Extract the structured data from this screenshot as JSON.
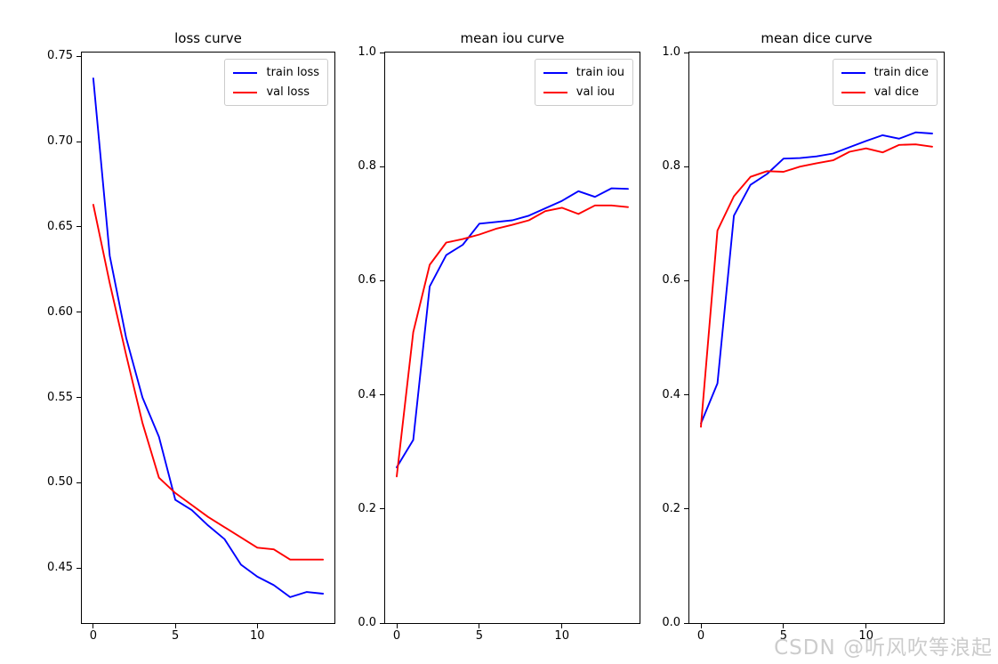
{
  "watermark": {
    "text": "CSDN @听风吹等浪起",
    "color": "#cccccc"
  },
  "colors": {
    "train": "#0000ff",
    "val": "#ff0000",
    "axis": "#000000",
    "legend_border": "#cccccc"
  },
  "chart_data": [
    {
      "type": "line",
      "title": "loss curve",
      "xlabel": "",
      "ylabel": "",
      "grid": false,
      "legend_position": "upper right",
      "x": [
        0,
        1,
        2,
        3,
        4,
        5,
        6,
        7,
        8,
        9,
        10,
        11,
        12,
        13,
        14
      ],
      "xlim": [
        -0.7,
        14.7
      ],
      "ylim": [
        0.4178,
        0.7522
      ],
      "x_ticks": [
        {
          "v": 0,
          "label": "0"
        },
        {
          "v": 5,
          "label": "5"
        },
        {
          "v": 10,
          "label": "10"
        }
      ],
      "y_ticks": [
        {
          "v": 0.45,
          "label": "0.45"
        },
        {
          "v": 0.5,
          "label": "0.50"
        },
        {
          "v": 0.55,
          "label": "0.55"
        },
        {
          "v": 0.6,
          "label": "0.60"
        },
        {
          "v": 0.65,
          "label": "0.65"
        },
        {
          "v": 0.7,
          "label": "0.70"
        },
        {
          "v": 0.75,
          "label": "0.75"
        }
      ],
      "series": [
        {
          "name": "train loss",
          "color": "#0000ff",
          "values": [
            0.737,
            0.633,
            0.585,
            0.55,
            0.527,
            0.49,
            0.484,
            0.475,
            0.467,
            0.452,
            0.445,
            0.44,
            0.433,
            0.436,
            0.435
          ]
        },
        {
          "name": "val loss",
          "color": "#ff0000",
          "values": [
            0.663,
            0.617,
            0.575,
            0.535,
            0.503,
            0.494,
            0.487,
            0.48,
            0.474,
            0.468,
            0.462,
            0.461,
            0.455,
            0.455,
            0.455
          ]
        }
      ]
    },
    {
      "type": "line",
      "title": "mean iou curve",
      "xlabel": "",
      "ylabel": "",
      "grid": false,
      "legend_position": "upper right",
      "x": [
        0,
        1,
        2,
        3,
        4,
        5,
        6,
        7,
        8,
        9,
        10,
        11,
        12,
        13,
        14
      ],
      "xlim": [
        -0.7,
        14.7
      ],
      "ylim": [
        0.0,
        1.0
      ],
      "x_ticks": [
        {
          "v": 0,
          "label": "0"
        },
        {
          "v": 5,
          "label": "5"
        },
        {
          "v": 10,
          "label": "10"
        }
      ],
      "y_ticks": [
        {
          "v": 0.0,
          "label": "0.0"
        },
        {
          "v": 0.2,
          "label": "0.2"
        },
        {
          "v": 0.4,
          "label": "0.4"
        },
        {
          "v": 0.6,
          "label": "0.6"
        },
        {
          "v": 0.8,
          "label": "0.8"
        },
        {
          "v": 1.0,
          "label": "1.0"
        }
      ],
      "series": [
        {
          "name": "train iou",
          "color": "#0000ff",
          "values": [
            0.273,
            0.321,
            0.59,
            0.645,
            0.663,
            0.7,
            0.703,
            0.706,
            0.714,
            0.727,
            0.74,
            0.757,
            0.747,
            0.762,
            0.761
          ]
        },
        {
          "name": "val iou",
          "color": "#ff0000",
          "values": [
            0.257,
            0.51,
            0.628,
            0.667,
            0.673,
            0.681,
            0.691,
            0.698,
            0.706,
            0.722,
            0.728,
            0.717,
            0.732,
            0.732,
            0.729
          ]
        }
      ]
    },
    {
      "type": "line",
      "title": "mean dice curve",
      "xlabel": "",
      "ylabel": "",
      "grid": false,
      "legend_position": "upper right",
      "x": [
        0,
        1,
        2,
        3,
        4,
        5,
        6,
        7,
        8,
        9,
        10,
        11,
        12,
        13,
        14
      ],
      "xlim": [
        -0.7,
        14.7
      ],
      "ylim": [
        0.0,
        1.0
      ],
      "x_ticks": [
        {
          "v": 0,
          "label": "0"
        },
        {
          "v": 5,
          "label": "5"
        },
        {
          "v": 10,
          "label": "10"
        }
      ],
      "y_ticks": [
        {
          "v": 0.0,
          "label": "0.0"
        },
        {
          "v": 0.2,
          "label": "0.2"
        },
        {
          "v": 0.4,
          "label": "0.4"
        },
        {
          "v": 0.6,
          "label": "0.6"
        },
        {
          "v": 0.8,
          "label": "0.8"
        },
        {
          "v": 1.0,
          "label": "1.0"
        }
      ],
      "series": [
        {
          "name": "train dice",
          "color": "#0000ff",
          "values": [
            0.35,
            0.42,
            0.714,
            0.768,
            0.787,
            0.814,
            0.815,
            0.818,
            0.823,
            0.834,
            0.845,
            0.855,
            0.849,
            0.86,
            0.858
          ]
        },
        {
          "name": "val dice",
          "color": "#ff0000",
          "values": [
            0.344,
            0.688,
            0.748,
            0.782,
            0.792,
            0.791,
            0.8,
            0.806,
            0.811,
            0.826,
            0.832,
            0.825,
            0.838,
            0.839,
            0.835
          ]
        }
      ]
    }
  ]
}
